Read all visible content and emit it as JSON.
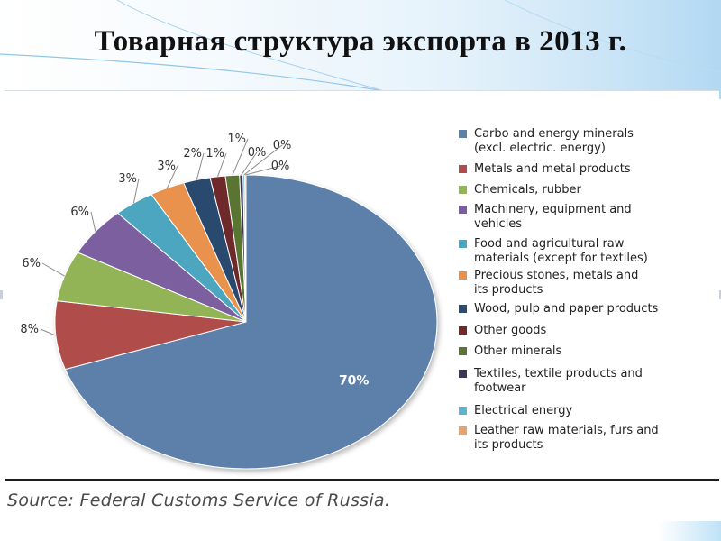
{
  "slide": {
    "title": "Товарная структура экспорта в 2013 г.",
    "source": "Source: Federal Customs Service of Russia."
  },
  "chart_data": {
    "type": "pie",
    "title": "",
    "slices": [
      {
        "label": [
          "Carbo and energy minerals",
          "(excl. electric. energy)"
        ],
        "value": 70.5,
        "display": "70%",
        "color": "#5b80aa"
      },
      {
        "label": [
          "Metals and metal products"
        ],
        "value": 7.6,
        "display": "8%",
        "color": "#b04d4b"
      },
      {
        "label": [
          "Chemicals, rubber"
        ],
        "value": 5.6,
        "display": "6%",
        "color": "#93b457"
      },
      {
        "label": [
          "Machinery, equipment and",
          "vehicles"
        ],
        "value": 5.5,
        "display": "6%",
        "color": "#7b5e9e"
      },
      {
        "label": [
          "Food and agricultural raw",
          "materials (except for textiles)"
        ],
        "value": 3.5,
        "display": "3%",
        "color": "#4ea6c0"
      },
      {
        "label": [
          "Precious stones, metals and",
          "its products"
        ],
        "value": 3.0,
        "display": "3%",
        "color": "#e8924d"
      },
      {
        "label": [
          "Wood, pulp and paper products"
        ],
        "value": 2.3,
        "display": "2%",
        "color": "#2b4a6e"
      },
      {
        "label": [
          "Other goods"
        ],
        "value": 1.3,
        "display": "1%",
        "color": "#6e2a2a"
      },
      {
        "label": [
          "Other minerals"
        ],
        "value": 1.2,
        "display": "1%",
        "color": "#5a7432"
      },
      {
        "label": [
          "Textiles, textile products and",
          "footwear"
        ],
        "value": 0.3,
        "display": "0%",
        "color": "#3a3550"
      },
      {
        "label": [
          "Electrical energy"
        ],
        "value": 0.15,
        "display": "0%",
        "color": "#5fb3ca"
      },
      {
        "label": [
          "Leather raw materials, furs and",
          "its products"
        ],
        "value": 0.1,
        "display": "0%",
        "color": "#e9a36a"
      }
    ],
    "legend_position": "right"
  }
}
